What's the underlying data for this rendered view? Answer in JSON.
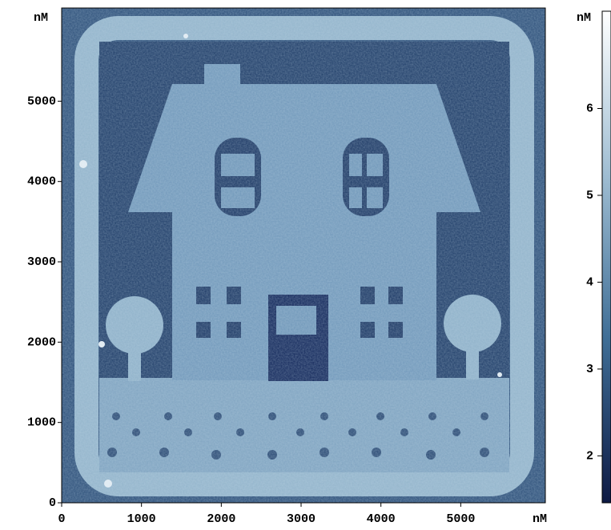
{
  "chart_data": {
    "type": "image",
    "y_unit_label": "nM",
    "x_unit_label": "nM",
    "colorbar_label": "nM",
    "xlim": [
      0,
      6060
    ],
    "xticks": [
      0,
      1000,
      2000,
      3000,
      4000,
      5000
    ],
    "ylim": [
      0,
      6160
    ],
    "yticks": [
      0,
      1000,
      2000,
      3000,
      4000,
      5000
    ],
    "colorbar": {
      "lim": [
        1.46,
        7.12
      ],
      "ticks": [
        2,
        3,
        4,
        5,
        6
      ],
      "colors": [
        "#0e1a44",
        "#3f6e96",
        "#9fbdd2",
        "#ffffff"
      ]
    }
  }
}
